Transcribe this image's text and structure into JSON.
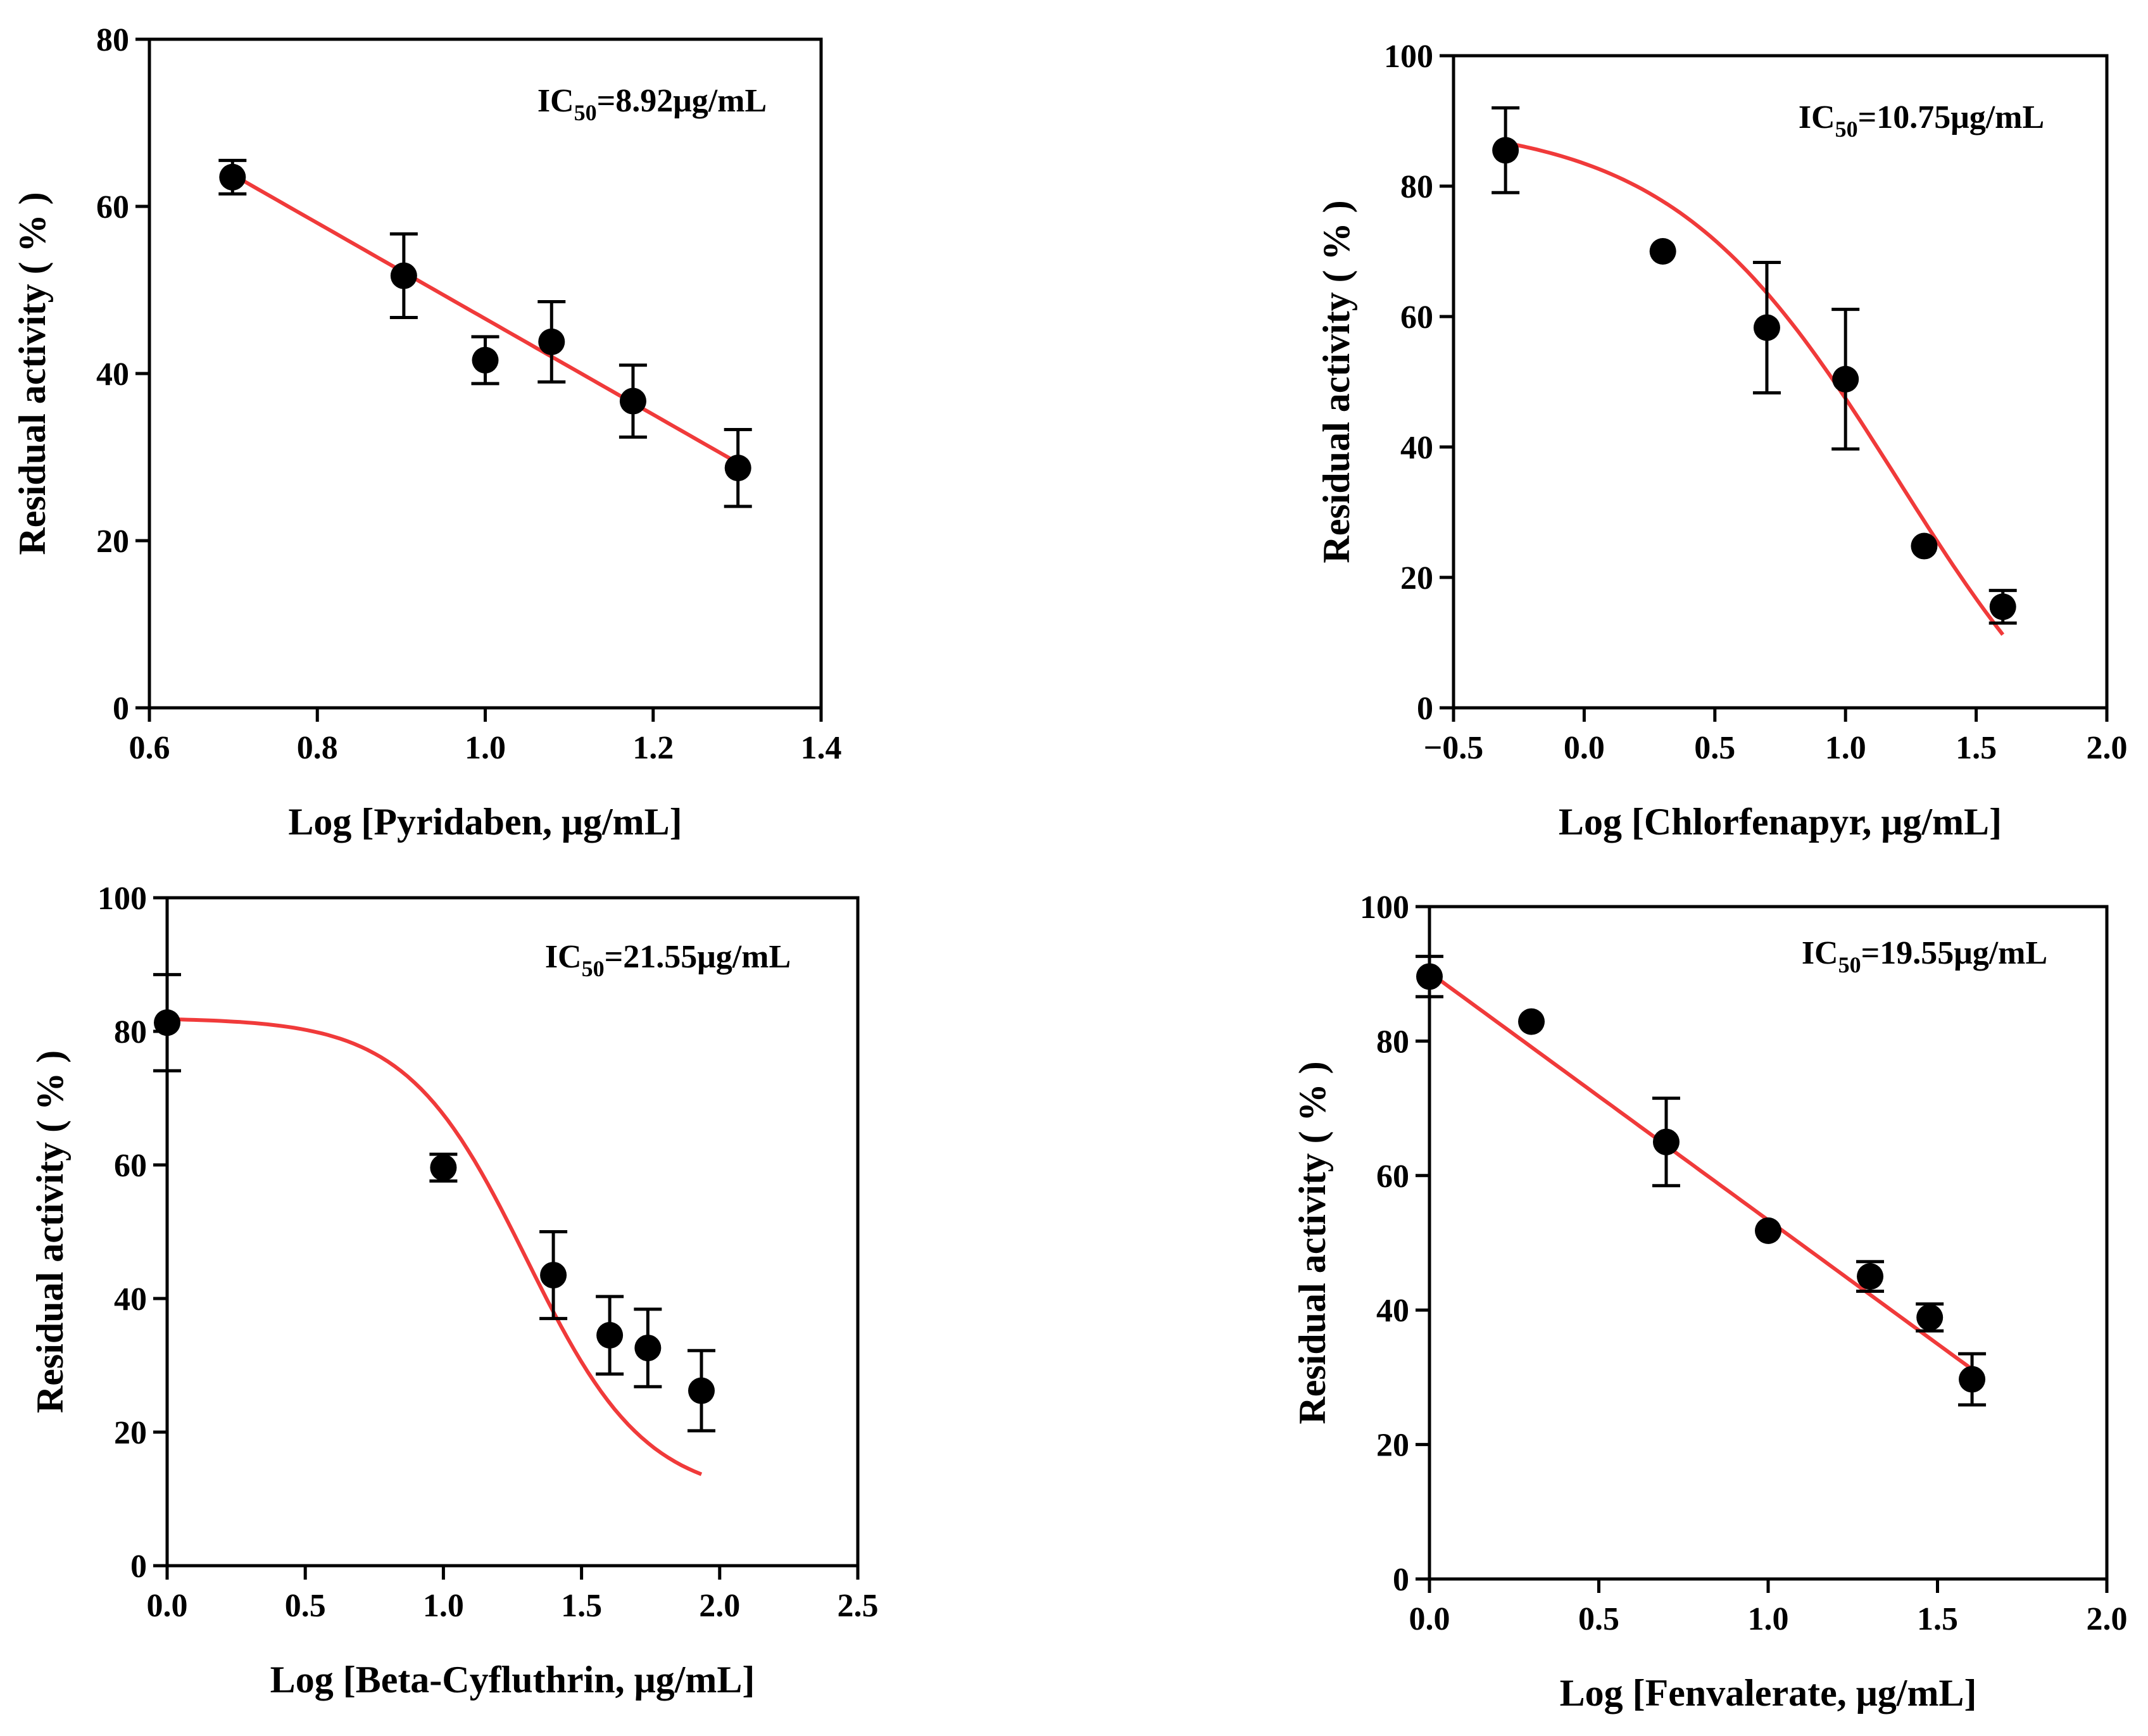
{
  "chart_data": [
    {
      "type": "scatter",
      "title": "",
      "annotation": {
        "prefix": "IC",
        "subscript": "50",
        "suffix": "=8.92μg/mL"
      },
      "xlabel": "Log [Pyridaben, μg/mL]",
      "ylabel": "Residual activity ( % )",
      "xlim": [
        0.6,
        1.4
      ],
      "ylim": [
        0,
        80
      ],
      "xticks": [
        0.6,
        0.8,
        1.0,
        1.2,
        1.4
      ],
      "xtick_labels": [
        "0.6",
        "0.8",
        "1.0",
        "1.2",
        "1.4"
      ],
      "yticks": [
        0,
        20,
        40,
        60,
        80
      ],
      "ytick_labels": [
        "0",
        "20",
        "40",
        "60",
        "80"
      ],
      "points": [
        {
          "x": 0.699,
          "y": 63.5,
          "err": 2.0
        },
        {
          "x": 0.903,
          "y": 51.7,
          "err": 5.0
        },
        {
          "x": 1.0,
          "y": 41.6,
          "err": 2.8
        },
        {
          "x": 1.079,
          "y": 43.8,
          "err": 4.8
        },
        {
          "x": 1.176,
          "y": 36.7,
          "err": 4.3
        },
        {
          "x": 1.301,
          "y": 28.7,
          "err": 4.6
        }
      ],
      "fit": {
        "model": "linear",
        "x0": 0.699,
        "x1": 1.301,
        "y0": 63.8,
        "y1": 29.3
      },
      "grid": false,
      "series_color": "#f03a3a",
      "marker_color": "#000000"
    },
    {
      "type": "scatter",
      "title": "",
      "annotation": {
        "prefix": "IC",
        "subscript": "50",
        "suffix": "=10.75μg/mL"
      },
      "xlabel": "Log [Chlorfenapyr, μg/mL]",
      "ylabel": "Residual activity ( % )",
      "xlim": [
        -0.5,
        2.0
      ],
      "ylim": [
        0,
        100
      ],
      "xticks": [
        -0.5,
        0.0,
        0.5,
        1.0,
        1.5,
        2.0
      ],
      "xtick_labels": [
        "−0.5",
        "0.0",
        "0.5",
        "1.0",
        "1.5",
        "2.0"
      ],
      "yticks": [
        0,
        20,
        40,
        60,
        80,
        100
      ],
      "ytick_labels": [
        "0",
        "20",
        "40",
        "60",
        "80",
        "100"
      ],
      "points": [
        {
          "x": -0.301,
          "y": 85.5,
          "err": 6.5
        },
        {
          "x": 0.301,
          "y": 70.0,
          "err": 0
        },
        {
          "x": 0.699,
          "y": 58.3,
          "err": 10.0
        },
        {
          "x": 1.0,
          "y": 50.4,
          "err": 10.7
        },
        {
          "x": 1.301,
          "y": 24.8,
          "err": 0
        },
        {
          "x": 1.602,
          "y": 15.5,
          "err": 2.5
        }
      ],
      "fit": {
        "model": "logistic",
        "top": 90,
        "bottom": -20,
        "logIC50": 1.2,
        "hill": 1.0,
        "x0": -0.301,
        "x1": 1.602
      },
      "grid": false,
      "series_color": "#f03a3a",
      "marker_color": "#000000"
    },
    {
      "type": "scatter",
      "title": "",
      "annotation": {
        "prefix": "IC",
        "subscript": "50",
        "suffix": "=21.55μg/mL"
      },
      "xlabel": "Log [Beta-Cyfluthrin, μg/mL]",
      "ylabel": "Residual activity ( % )",
      "xlim": [
        0.0,
        2.5
      ],
      "ylim": [
        0,
        100
      ],
      "xticks": [
        0.0,
        0.5,
        1.0,
        1.5,
        2.0,
        2.5
      ],
      "xtick_labels": [
        "0.0",
        "0.5",
        "1.0",
        "1.5",
        "2.0",
        "2.5"
      ],
      "yticks": [
        0,
        20,
        40,
        60,
        80,
        100
      ],
      "ytick_labels": [
        "0",
        "20",
        "40",
        "60",
        "80",
        "100"
      ],
      "points": [
        {
          "x": 0.0,
          "y": 81.3,
          "err": 7.2
        },
        {
          "x": 1.0,
          "y": 59.6,
          "err": 2.0
        },
        {
          "x": 1.398,
          "y": 43.5,
          "err": 6.5
        },
        {
          "x": 1.602,
          "y": 34.5,
          "err": 5.8
        },
        {
          "x": 1.74,
          "y": 32.6,
          "err": 5.8
        },
        {
          "x": 1.934,
          "y": 26.2,
          "err": 6.0
        }
      ],
      "fit": {
        "model": "logistic",
        "top": 82,
        "bottom": 10,
        "logIC50": 1.3,
        "hill": 2.0,
        "x0": 0.0,
        "x1": 1.934
      },
      "grid": false,
      "series_color": "#f03a3a",
      "marker_color": "#000000"
    },
    {
      "type": "scatter",
      "title": "",
      "annotation": {
        "prefix": "IC",
        "subscript": "50",
        "suffix": "=19.55μg/mL"
      },
      "xlabel": "Log [Fenvalerate, μg/mL]",
      "ylabel": "Residual activity ( % )",
      "xlim": [
        0.0,
        2.0
      ],
      "ylim": [
        0,
        100
      ],
      "xticks": [
        0.0,
        0.5,
        1.0,
        1.5,
        2.0
      ],
      "xtick_labels": [
        "0.0",
        "0.5",
        "1.0",
        "1.5",
        "2.0"
      ],
      "yticks": [
        0,
        20,
        40,
        60,
        80,
        100
      ],
      "ytick_labels": [
        "0",
        "20",
        "40",
        "60",
        "80",
        "100"
      ],
      "points": [
        {
          "x": 0.0,
          "y": 89.6,
          "err": 3.0
        },
        {
          "x": 0.301,
          "y": 82.9,
          "err": 0
        },
        {
          "x": 0.699,
          "y": 65.0,
          "err": 6.5
        },
        {
          "x": 1.0,
          "y": 51.8,
          "err": 0
        },
        {
          "x": 1.301,
          "y": 45.0,
          "err": 2.2
        },
        {
          "x": 1.477,
          "y": 38.9,
          "err": 2.0
        },
        {
          "x": 1.602,
          "y": 29.7,
          "err": 3.8
        }
      ],
      "fit": {
        "model": "linear",
        "x0": 0.0,
        "x1": 1.602,
        "y0": 90.2,
        "y1": 31.2
      },
      "grid": false,
      "series_color": "#f03a3a",
      "marker_color": "#000000"
    }
  ]
}
